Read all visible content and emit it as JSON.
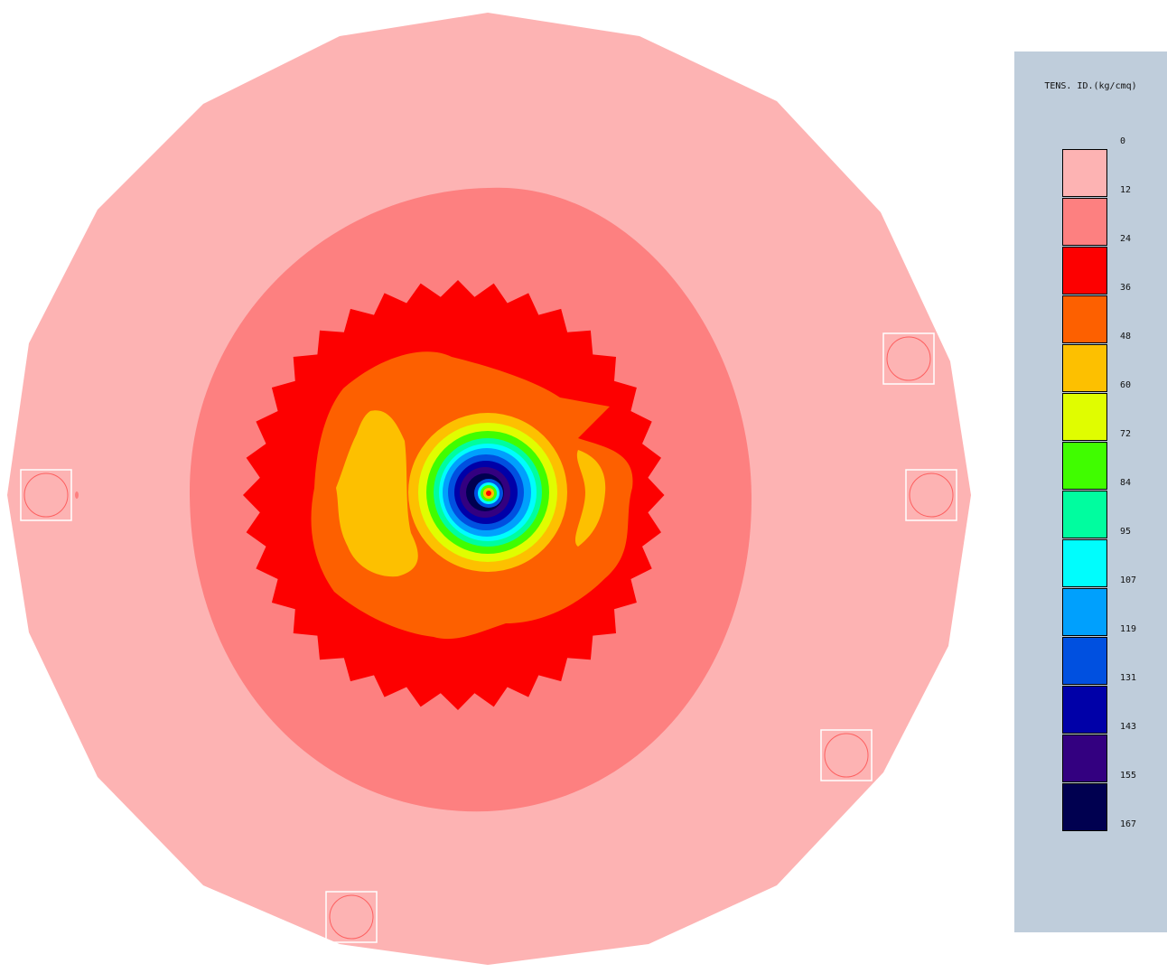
{
  "legend": {
    "title": "TENS. ID.(kg/cmq)",
    "ticks": [
      "0",
      "12",
      "24",
      "36",
      "48",
      "60",
      "72",
      "84",
      "95",
      "107",
      "119",
      "131",
      "143",
      "155",
      "167"
    ],
    "colors": [
      "#fdb3b3",
      "#fd8080",
      "#fd0000",
      "#fd6000",
      "#fdc000",
      "#e0fd00",
      "#40fd00",
      "#00fd9f",
      "#00fdfd",
      "#00a0fd",
      "#0050e0",
      "#0000a8",
      "#330080",
      "#000050"
    ]
  },
  "bands": [
    {
      "label": "0-12",
      "color": "#fdb3b3"
    },
    {
      "label": "12-24",
      "color": "#fd8080"
    },
    {
      "label": "24-36",
      "color": "#fd0000"
    },
    {
      "label": "36-48",
      "color": "#fd6000"
    },
    {
      "label": "48-60",
      "color": "#fdc000"
    },
    {
      "label": "60-72",
      "color": "#e0fd00"
    },
    {
      "label": "72-84",
      "color": "#40fd00"
    },
    {
      "label": "84-95",
      "color": "#00fd9f"
    },
    {
      "label": "95-107",
      "color": "#00fdfd"
    },
    {
      "label": "107-119",
      "color": "#00a0fd"
    },
    {
      "label": "119-131",
      "color": "#0050e0"
    },
    {
      "label": "131-143",
      "color": "#0000a8"
    },
    {
      "label": "143-155",
      "color": "#330080"
    },
    {
      "label": "155-167",
      "color": "#000050"
    }
  ],
  "supports": [
    {
      "name": "support-left"
    },
    {
      "name": "support-right-upper"
    },
    {
      "name": "support-right"
    },
    {
      "name": "support-lower-right"
    },
    {
      "name": "support-bottom"
    }
  ]
}
